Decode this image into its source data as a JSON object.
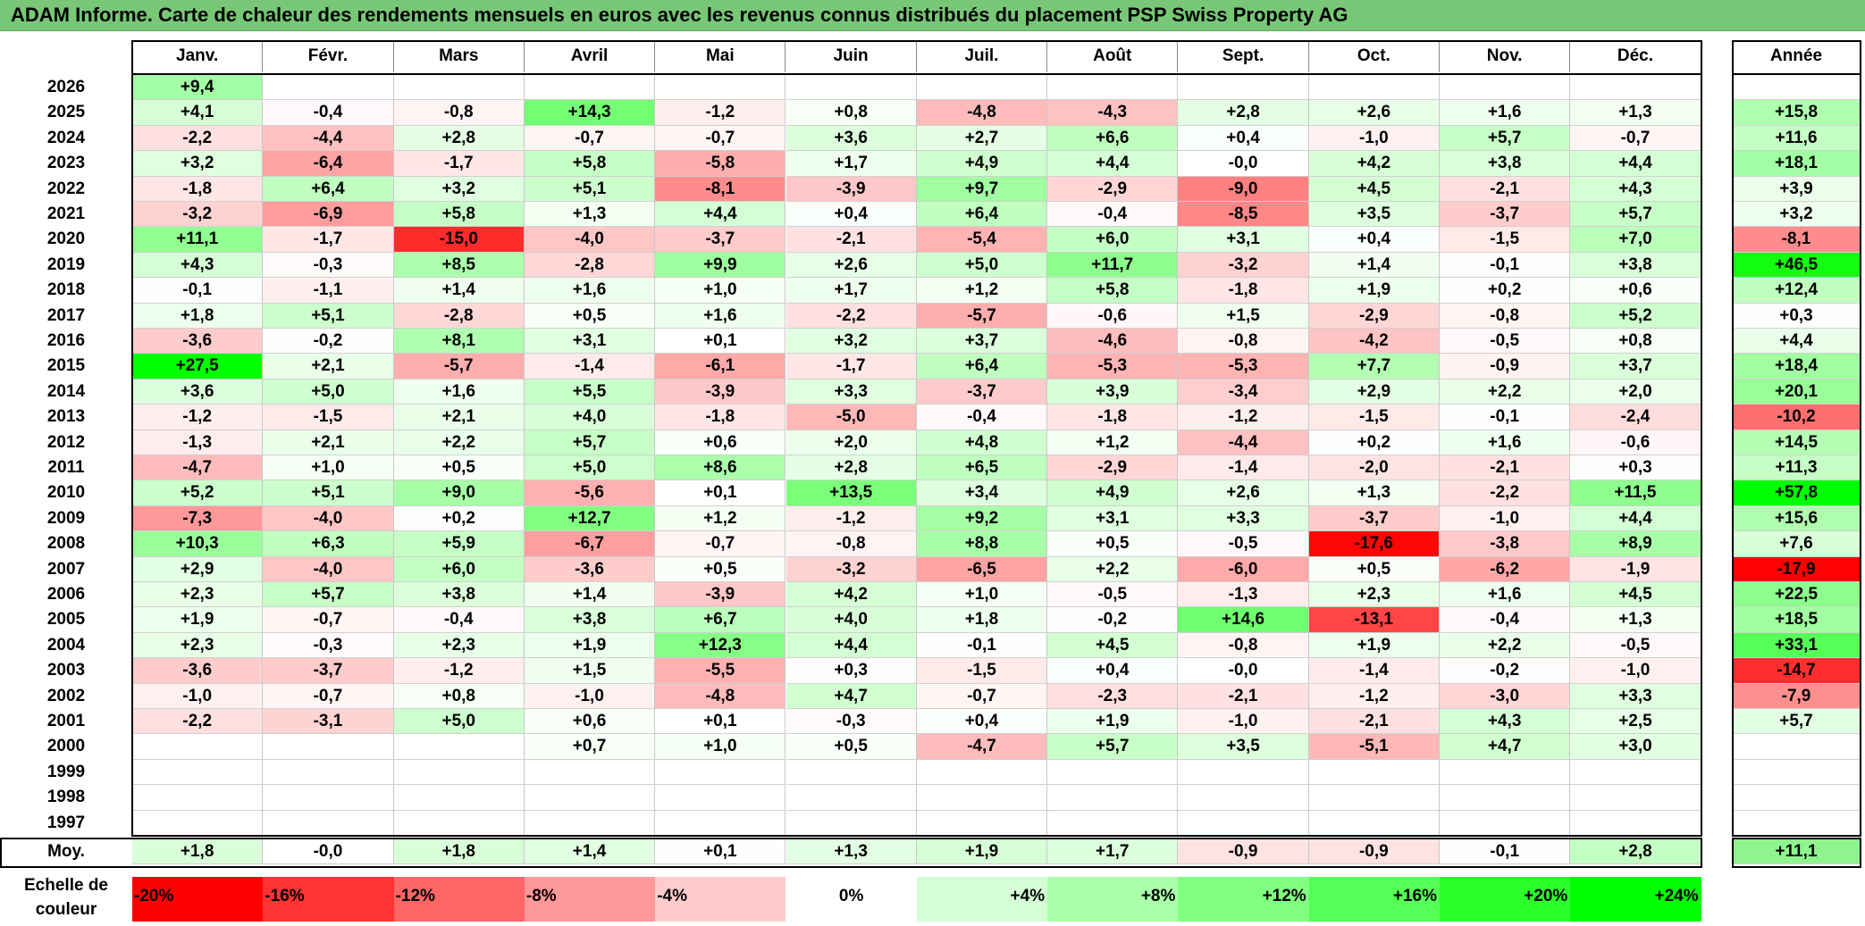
{
  "title": "ADAM Informe. Carte de chaleur des rendements mensuels en euros avec les revenus connus distribués du placement PSP Swiss Property AG",
  "columns": [
    "Janv.",
    "Févr.",
    "Mars",
    "Avril",
    "Mai",
    "Juin",
    "Juil.",
    "Août",
    "Sept.",
    "Oct.",
    "Nov.",
    "Déc."
  ],
  "year_column_label": "Année",
  "average_row_label": "Moy.",
  "scale_label": "Echelle de couleur",
  "colors": {
    "title_bg": "#77c777",
    "negative_max": "#ff0000",
    "positive_max": "#00ff00",
    "neutral": "#ffffff"
  },
  "chart_data": {
    "type": "heatmap",
    "title": "ADAM Informe. Carte de chaleur des rendements mensuels en euros avec les revenus connus distribués du placement PSP Swiss Property AG",
    "x": [
      "Janv.",
      "Févr.",
      "Mars",
      "Avril",
      "Mai",
      "Juin",
      "Juil.",
      "Août",
      "Sept.",
      "Oct.",
      "Nov.",
      "Déc."
    ],
    "rows": [
      {
        "year": "2026",
        "values": [
          "+9,4",
          "",
          "",
          "",
          "",
          "",
          "",
          "",
          "",
          "",
          "",
          ""
        ],
        "annual": ""
      },
      {
        "year": "2025",
        "values": [
          "+4,1",
          "-0,4",
          "-0,8",
          "+14,3",
          "-1,2",
          "+0,8",
          "-4,8",
          "-4,3",
          "+2,8",
          "+2,6",
          "+1,6",
          "+1,3"
        ],
        "annual": "+15,8"
      },
      {
        "year": "2024",
        "values": [
          "-2,2",
          "-4,4",
          "+2,8",
          "-0,7",
          "-0,7",
          "+3,6",
          "+2,7",
          "+6,6",
          "+0,4",
          "-1,0",
          "+5,7",
          "-0,7"
        ],
        "annual": "+11,6"
      },
      {
        "year": "2023",
        "values": [
          "+3,2",
          "-6,4",
          "-1,7",
          "+5,8",
          "-5,8",
          "+1,7",
          "+4,9",
          "+4,4",
          "-0,0",
          "+4,2",
          "+3,8",
          "+4,4"
        ],
        "annual": "+18,1"
      },
      {
        "year": "2022",
        "values": [
          "-1,8",
          "+6,4",
          "+3,2",
          "+5,1",
          "-8,1",
          "-3,9",
          "+9,7",
          "-2,9",
          "-9,0",
          "+4,5",
          "-2,1",
          "+4,3"
        ],
        "annual": "+3,9"
      },
      {
        "year": "2021",
        "values": [
          "-3,2",
          "-6,9",
          "+5,8",
          "+1,3",
          "+4,4",
          "+0,4",
          "+6,4",
          "-0,4",
          "-8,5",
          "+3,5",
          "-3,7",
          "+5,7"
        ],
        "annual": "+3,2"
      },
      {
        "year": "2020",
        "values": [
          "+11,1",
          "-1,7",
          "-15,0",
          "-4,0",
          "-3,7",
          "-2,1",
          "-5,4",
          "+6,0",
          "+3,1",
          "+0,4",
          "-1,5",
          "+7,0"
        ],
        "annual": "-8,1"
      },
      {
        "year": "2019",
        "values": [
          "+4,3",
          "-0,3",
          "+8,5",
          "-2,8",
          "+9,9",
          "+2,6",
          "+5,0",
          "+11,7",
          "-3,2",
          "+1,4",
          "-0,1",
          "+3,8"
        ],
        "annual": "+46,5"
      },
      {
        "year": "2018",
        "values": [
          "-0,1",
          "-1,1",
          "+1,4",
          "+1,6",
          "+1,0",
          "+1,7",
          "+1,2",
          "+5,8",
          "-1,8",
          "+1,9",
          "+0,2",
          "+0,6"
        ],
        "annual": "+12,4"
      },
      {
        "year": "2017",
        "values": [
          "+1,8",
          "+5,1",
          "-2,8",
          "+0,5",
          "+1,6",
          "-2,2",
          "-5,7",
          "-0,6",
          "+1,5",
          "-2,9",
          "-0,8",
          "+5,2"
        ],
        "annual": "+0,3"
      },
      {
        "year": "2016",
        "values": [
          "-3,6",
          "-0,2",
          "+8,1",
          "+3,1",
          "+0,1",
          "+3,2",
          "+3,7",
          "-4,6",
          "-0,8",
          "-4,2",
          "-0,5",
          "+0,8"
        ],
        "annual": "+4,4"
      },
      {
        "year": "2015",
        "values": [
          "+27,5",
          "+2,1",
          "-5,7",
          "-1,4",
          "-6,1",
          "-1,7",
          "+6,4",
          "-5,3",
          "-5,3",
          "+7,7",
          "-0,9",
          "+3,7"
        ],
        "annual": "+18,4"
      },
      {
        "year": "2014",
        "values": [
          "+3,6",
          "+5,0",
          "+1,6",
          "+5,5",
          "-3,9",
          "+3,3",
          "-3,7",
          "+3,9",
          "-3,4",
          "+2,9",
          "+2,2",
          "+2,0"
        ],
        "annual": "+20,1"
      },
      {
        "year": "2013",
        "values": [
          "-1,2",
          "-1,5",
          "+2,1",
          "+4,0",
          "-1,8",
          "-5,0",
          "-0,4",
          "-1,8",
          "-1,2",
          "-1,5",
          "-0,1",
          "-2,4"
        ],
        "annual": "-10,2"
      },
      {
        "year": "2012",
        "values": [
          "-1,3",
          "+2,1",
          "+2,2",
          "+5,7",
          "+0,6",
          "+2,0",
          "+4,8",
          "+1,2",
          "-4,4",
          "+0,2",
          "+1,6",
          "-0,6"
        ],
        "annual": "+14,5"
      },
      {
        "year": "2011",
        "values": [
          "-4,7",
          "+1,0",
          "+0,5",
          "+5,0",
          "+8,6",
          "+2,8",
          "+6,5",
          "-2,9",
          "-1,4",
          "-2,0",
          "-2,1",
          "+0,3"
        ],
        "annual": "+11,3"
      },
      {
        "year": "2010",
        "values": [
          "+5,2",
          "+5,1",
          "+9,0",
          "-5,6",
          "+0,1",
          "+13,5",
          "+3,4",
          "+4,9",
          "+2,6",
          "+1,3",
          "-2,2",
          "+11,5"
        ],
        "annual": "+57,8"
      },
      {
        "year": "2009",
        "values": [
          "-7,3",
          "-4,0",
          "+0,2",
          "+12,7",
          "+1,2",
          "-1,2",
          "+9,2",
          "+3,1",
          "+3,3",
          "-3,7",
          "-1,0",
          "+4,4"
        ],
        "annual": "+15,6"
      },
      {
        "year": "2008",
        "values": [
          "+10,3",
          "+6,3",
          "+5,9",
          "-6,7",
          "-0,7",
          "-0,8",
          "+8,8",
          "+0,5",
          "-0,5",
          "-17,6",
          "-3,8",
          "+8,9"
        ],
        "annual": "+7,6"
      },
      {
        "year": "2007",
        "values": [
          "+2,9",
          "-4,0",
          "+6,0",
          "-3,6",
          "+0,5",
          "-3,2",
          "-6,5",
          "+2,2",
          "-6,0",
          "+0,5",
          "-6,2",
          "-1,9"
        ],
        "annual": "-17,9"
      },
      {
        "year": "2006",
        "values": [
          "+2,3",
          "+5,7",
          "+3,8",
          "+1,4",
          "-3,9",
          "+4,2",
          "+1,0",
          "-0,5",
          "-1,3",
          "+2,3",
          "+1,6",
          "+4,5"
        ],
        "annual": "+22,5"
      },
      {
        "year": "2005",
        "values": [
          "+1,9",
          "-0,7",
          "-0,4",
          "+3,8",
          "+6,7",
          "+4,0",
          "+1,8",
          "-0,2",
          "+14,6",
          "-13,1",
          "-0,4",
          "+1,3"
        ],
        "annual": "+18,5"
      },
      {
        "year": "2004",
        "values": [
          "+2,3",
          "-0,3",
          "+2,3",
          "+1,9",
          "+12,3",
          "+4,4",
          "-0,1",
          "+4,5",
          "-0,8",
          "+1,9",
          "+2,2",
          "-0,5"
        ],
        "annual": "+33,1"
      },
      {
        "year": "2003",
        "values": [
          "-3,6",
          "-3,7",
          "-1,2",
          "+1,5",
          "-5,5",
          "+0,3",
          "-1,5",
          "+0,4",
          "-0,0",
          "-1,4",
          "-0,2",
          "-1,0"
        ],
        "annual": "-14,7"
      },
      {
        "year": "2002",
        "values": [
          "-1,0",
          "-0,7",
          "+0,8",
          "-1,0",
          "-4,8",
          "+4,7",
          "-0,7",
          "-2,3",
          "-2,1",
          "-1,2",
          "-3,0",
          "+3,3"
        ],
        "annual": "-7,9"
      },
      {
        "year": "2001",
        "values": [
          "-2,2",
          "-3,1",
          "+5,0",
          "+0,6",
          "+0,1",
          "-0,3",
          "+0,4",
          "+1,9",
          "-1,0",
          "-2,1",
          "+4,3",
          "+2,5"
        ],
        "annual": "+5,7"
      },
      {
        "year": "2000",
        "values": [
          "",
          "",
          "",
          "+0,7",
          "+1,0",
          "+0,5",
          "-4,7",
          "+5,7",
          "+3,5",
          "-5,1",
          "+4,7",
          "+3,0"
        ],
        "annual": ""
      },
      {
        "year": "1999",
        "values": [
          "",
          "",
          "",
          "",
          "",
          "",
          "",
          "",
          "",
          "",
          "",
          ""
        ],
        "annual": ""
      },
      {
        "year": "1998",
        "values": [
          "",
          "",
          "",
          "",
          "",
          "",
          "",
          "",
          "",
          "",
          "",
          ""
        ],
        "annual": ""
      },
      {
        "year": "1997",
        "values": [
          "",
          "",
          "",
          "",
          "",
          "",
          "",
          "",
          "",
          "",
          "",
          ""
        ],
        "annual": ""
      }
    ],
    "average": {
      "values": [
        "+1,8",
        "-0,0",
        "+1,8",
        "+1,4",
        "+0,1",
        "+1,3",
        "+1,9",
        "+1,7",
        "-0,9",
        "-0,9",
        "-0,1",
        "+2,8"
      ],
      "annual": "+11,1"
    },
    "color_scale": [
      "-20%",
      "-16%",
      "-12%",
      "-8%",
      "-4%",
      "0%",
      "+4%",
      "+8%",
      "+12%",
      "+16%",
      "+20%",
      "+24%"
    ],
    "color_scale_range": [
      -20,
      24
    ]
  }
}
